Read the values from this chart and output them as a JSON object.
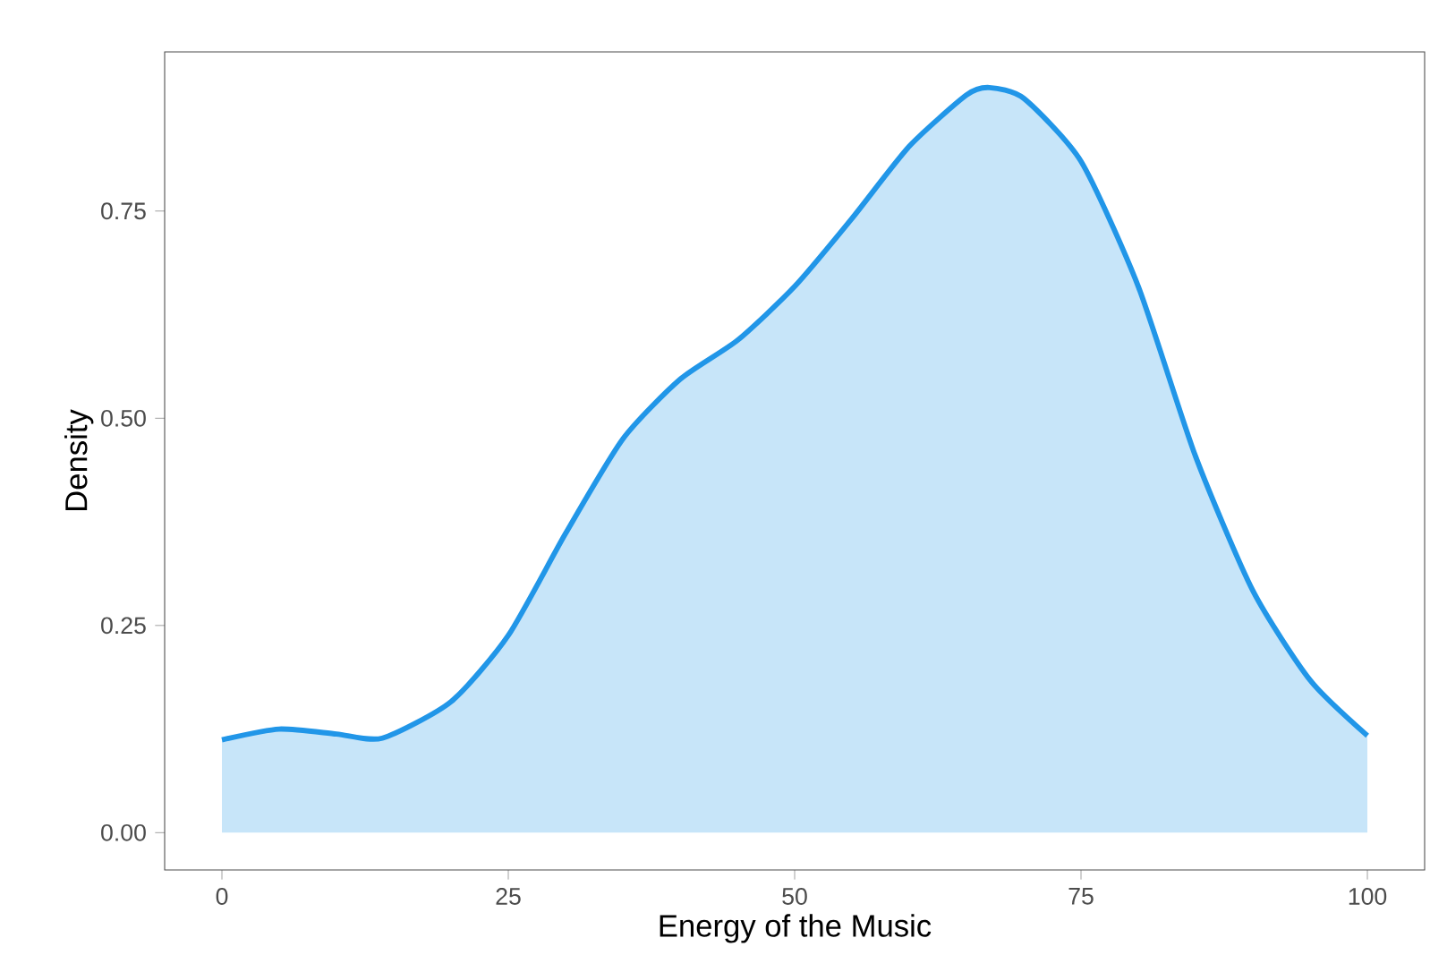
{
  "chart_data": {
    "type": "area",
    "xlabel": "Energy of the Music",
    "ylabel": "Density",
    "x": [
      0,
      5,
      10,
      14,
      20,
      25,
      30,
      35,
      40,
      45,
      50,
      55,
      60,
      65,
      67,
      70,
      75,
      80,
      85,
      90,
      95,
      100
    ],
    "series": [
      {
        "color": "#2196e8",
        "values": [
          0.112,
          0.125,
          0.119,
          0.114,
          0.158,
          0.238,
          0.361,
          0.475,
          0.547,
          0.594,
          0.659,
          0.741,
          0.828,
          0.89,
          0.899,
          0.886,
          0.81,
          0.659,
          0.454,
          0.292,
          0.184,
          0.117
        ]
      }
    ],
    "xlim": [
      -5,
      105
    ],
    "ylim": [
      -0.045,
      0.942
    ],
    "xticks": [
      0,
      25,
      50,
      75,
      100
    ],
    "yticks": [
      {
        "value": 0,
        "label": "0.00"
      },
      {
        "value": 0.25,
        "label": "0.25"
      },
      {
        "value": 0.5,
        "label": "0.50"
      },
      {
        "value": 0.75,
        "label": "0.75"
      }
    ],
    "grid": false
  }
}
